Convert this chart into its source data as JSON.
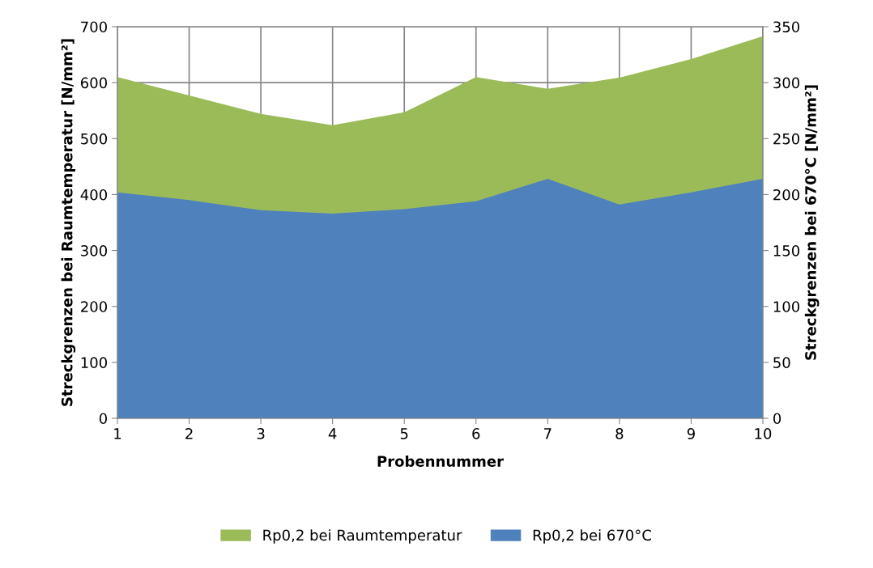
{
  "chart_data": {
    "type": "area",
    "xlabel": "Probennummer",
    "ylabel": "Streckgrenzen bei Raumtemperatur [N/mm²]",
    "y2label": "Streckgrenzen bei 670°C [N/mm²]",
    "x": [
      1,
      2,
      3,
      4,
      5,
      6,
      7,
      8,
      9,
      10
    ],
    "xlim": [
      1,
      10
    ],
    "xticks": [
      1,
      2,
      3,
      4,
      5,
      6,
      7,
      8,
      9,
      10
    ],
    "ylim": [
      0,
      700
    ],
    "yticks": [
      0,
      100,
      200,
      300,
      400,
      500,
      600,
      700
    ],
    "y2lim": [
      0,
      350
    ],
    "y2ticks": [
      0,
      50,
      100,
      150,
      200,
      250,
      300,
      350
    ],
    "grid": true,
    "legend": "bottom",
    "series": [
      {
        "name": "Rp0,2 bei Raumtemperatur",
        "color": "#9bbb59",
        "values": [
          610,
          577,
          544,
          524,
          547,
          610,
          589,
          609,
          642,
          683
        ]
      },
      {
        "name": "Rp0,2 bei 670°C",
        "color": "#4f81bd",
        "axis": "y2",
        "values": [
          202,
          195,
          186,
          183,
          187,
          194,
          214,
          191,
          202,
          214
        ]
      }
    ]
  }
}
